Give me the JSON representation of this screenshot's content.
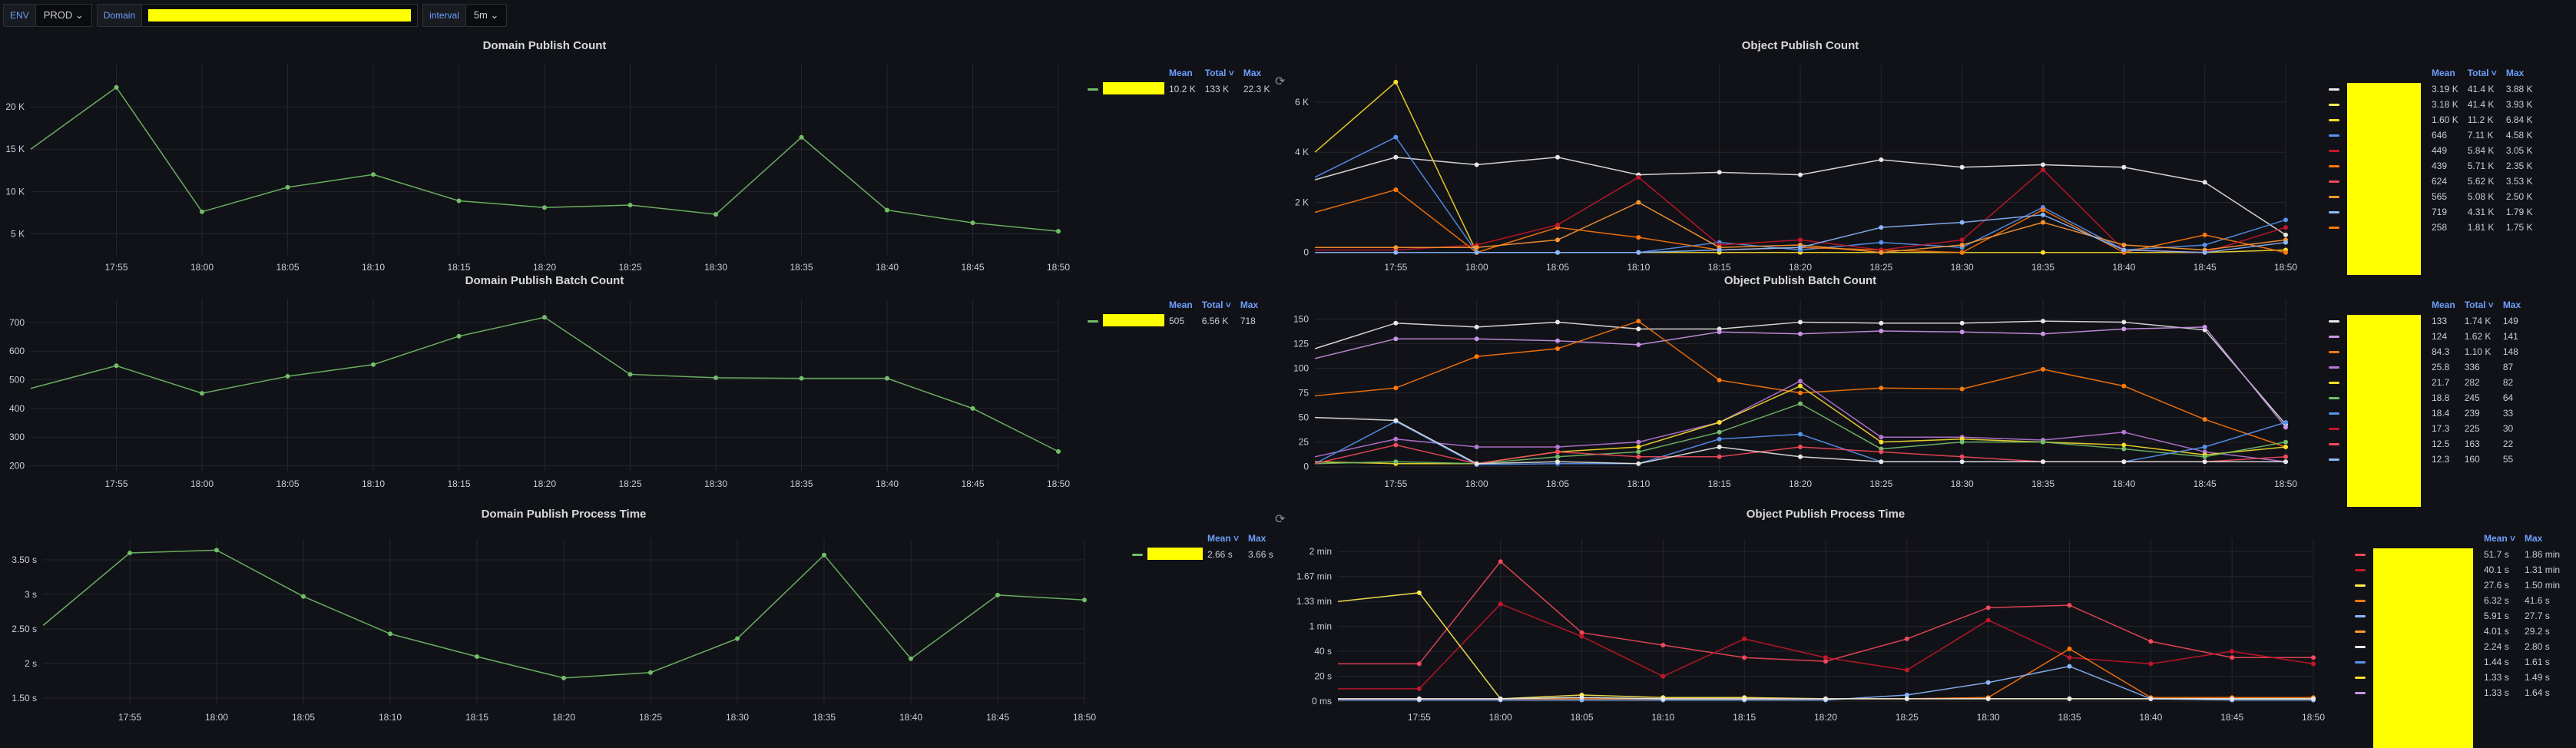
{
  "variables": {
    "env_label": "ENV",
    "env_value": "PROD",
    "domain_label": "Domain",
    "interval_label": "interval",
    "interval_value": "5m"
  },
  "colors": {
    "green": "#73bf69",
    "yellow": "#fade2a",
    "white": "#e8e8e8",
    "blue": "#5794f2",
    "orange": "#ff780a",
    "red": "#f2495c",
    "purple": "#b877d9",
    "darkred": "#c4162a",
    "paleyellow": "#ffee52",
    "lightblue": "#8ab8ff",
    "darkorange": "#ff9830",
    "lightpurple": "#ca95e5",
    "redaction": "#ffff00"
  },
  "x_labels": [
    "17:55",
    "18:00",
    "18:05",
    "18:10",
    "18:15",
    "18:20",
    "18:25",
    "18:30",
    "18:35",
    "18:40",
    "18:45",
    "18:50"
  ],
  "panels": [
    {
      "id": "domain-publish-count",
      "title": "Domain Publish Count",
      "refresh": true,
      "legend_headers": [
        "Mean",
        "Total ˅",
        "Max"
      ],
      "legend_rows": [
        {
          "color": "green",
          "values": [
            "10.2 K",
            "133 K",
            "22.3 K"
          ]
        }
      ],
      "chart_data": {
        "type": "line",
        "x": [
          "17:50",
          "17:55",
          "18:00",
          "18:05",
          "18:10",
          "18:15",
          "18:20",
          "18:25",
          "18:30",
          "18:35",
          "18:40",
          "18:45",
          "18:50"
        ],
        "ylim": [
          2500,
          25000
        ],
        "yticks": [
          {
            "v": 5000,
            "l": "5 K"
          },
          {
            "v": 10000,
            "l": "10 K"
          },
          {
            "v": 15000,
            "l": "15 K"
          },
          {
            "v": 20000,
            "l": "20 K"
          }
        ],
        "series": [
          {
            "color": "green",
            "values": [
              15000,
              22300,
              7600,
              10500,
              12000,
              8900,
              8100,
              8400,
              7300,
              16400,
              7800,
              6300,
              5300
            ]
          }
        ]
      }
    },
    {
      "id": "object-publish-count",
      "title": "Object Publish Count",
      "refresh": false,
      "legend_headers": [
        "Mean",
        "Total ˅",
        "Max"
      ],
      "legend_rows": [
        {
          "color": "white",
          "values": [
            "3.19 K",
            "41.4 K",
            "3.88 K"
          ]
        },
        {
          "color": "paleyellow",
          "values": [
            "3.18 K",
            "41.4 K",
            "3.93 K"
          ]
        },
        {
          "color": "yellow",
          "values": [
            "1.60 K",
            "11.2 K",
            "6.84 K"
          ]
        },
        {
          "color": "blue",
          "values": [
            "646",
            "7.11 K",
            "4.58 K"
          ]
        },
        {
          "color": "darkred",
          "values": [
            "449",
            "5.84 K",
            "3.05 K"
          ]
        },
        {
          "color": "orange",
          "values": [
            "439",
            "5.71 K",
            "2.35 K"
          ]
        },
        {
          "color": "red",
          "values": [
            "624",
            "5.62 K",
            "3.53 K"
          ]
        },
        {
          "color": "darkorange",
          "values": [
            "565",
            "5.08 K",
            "2.50 K"
          ]
        },
        {
          "color": "lightblue",
          "values": [
            "719",
            "4.31 K",
            "1.79 K"
          ]
        },
        {
          "color": "orange",
          "values": [
            "258",
            "1.81 K",
            "1.75 K"
          ]
        }
      ],
      "chart_data": {
        "type": "line",
        "x": [
          "17:50",
          "17:55",
          "18:00",
          "18:05",
          "18:10",
          "18:15",
          "18:20",
          "18:25",
          "18:30",
          "18:35",
          "18:40",
          "18:45",
          "18:50"
        ],
        "ylim": [
          -100,
          7500
        ],
        "yticks": [
          {
            "v": 0,
            "l": "0"
          },
          {
            "v": 2000,
            "l": "2 K"
          },
          {
            "v": 4000,
            "l": "4 K"
          },
          {
            "v": 6000,
            "l": "6 K"
          }
        ],
        "series": [
          {
            "color": "white",
            "values": [
              2900,
              3800,
              3500,
              3800,
              3100,
              3200,
              3100,
              3700,
              3400,
              3500,
              3400,
              2800,
              700
            ]
          },
          {
            "color": "yellow",
            "values": [
              4000,
              6800,
              0,
              0,
              0,
              0,
              0,
              0,
              0,
              0,
              0,
              0,
              100
            ]
          },
          {
            "color": "blue",
            "values": [
              3000,
              4600,
              0,
              0,
              0,
              400,
              100,
              400,
              200,
              1800,
              100,
              300,
              1300
            ]
          },
          {
            "color": "orange",
            "values": [
              1600,
              2500,
              0,
              1000,
              600,
              100,
              200,
              100,
              0,
              1700,
              0,
              700,
              0
            ]
          },
          {
            "color": "darkred",
            "values": [
              100,
              100,
              300,
              1100,
              3000,
              300,
              500,
              100,
              500,
              3300,
              100,
              0,
              1000
            ]
          },
          {
            "color": "darkorange",
            "values": [
              200,
              200,
              200,
              500,
              2000,
              200,
              300,
              0,
              300,
              1200,
              300,
              100,
              500
            ]
          },
          {
            "color": "lightblue",
            "values": [
              0,
              0,
              0,
              0,
              0,
              100,
              200,
              1000,
              1200,
              1500,
              100,
              0,
              400
            ]
          }
        ]
      }
    },
    {
      "id": "domain-publish-batch-count",
      "title": "Domain Publish Batch Count",
      "refresh": false,
      "legend_headers": [
        "Mean",
        "Total ˅",
        "Max"
      ],
      "legend_rows": [
        {
          "color": "green",
          "values": [
            "505",
            "6.56 K",
            "718"
          ]
        }
      ],
      "chart_data": {
        "type": "line",
        "x": [
          "17:50",
          "17:55",
          "18:00",
          "18:05",
          "18:10",
          "18:15",
          "18:20",
          "18:25",
          "18:30",
          "18:35",
          "18:40",
          "18:45",
          "18:50"
        ],
        "ylim": [
          180,
          780
        ],
        "yticks": [
          {
            "v": 200,
            "l": "200"
          },
          {
            "v": 300,
            "l": "300"
          },
          {
            "v": 400,
            "l": "400"
          },
          {
            "v": 500,
            "l": "500"
          },
          {
            "v": 600,
            "l": "600"
          },
          {
            "v": 700,
            "l": "700"
          }
        ],
        "series": [
          {
            "color": "green",
            "values": [
              470,
              549,
              453,
              512,
              553,
              652,
              718,
              519,
              507,
              505,
              505,
              400,
              250
            ]
          }
        ]
      }
    },
    {
      "id": "object-publish-batch-count",
      "title": "Object Publish Batch Count",
      "refresh": false,
      "legend_headers": [
        "Mean",
        "Total ˅",
        "Max"
      ],
      "legend_rows": [
        {
          "color": "white",
          "values": [
            "133",
            "1.74 K",
            "149"
          ]
        },
        {
          "color": "lightpurple",
          "values": [
            "124",
            "1.62 K",
            "141"
          ]
        },
        {
          "color": "orange",
          "values": [
            "84.3",
            "1.10 K",
            "148"
          ]
        },
        {
          "color": "purple",
          "values": [
            "25.8",
            "336",
            "87"
          ]
        },
        {
          "color": "yellow",
          "values": [
            "21.7",
            "282",
            "82"
          ]
        },
        {
          "color": "green",
          "values": [
            "18.8",
            "245",
            "64"
          ]
        },
        {
          "color": "blue",
          "values": [
            "18.4",
            "239",
            "33"
          ]
        },
        {
          "color": "darkred",
          "values": [
            "17.3",
            "225",
            "30"
          ]
        },
        {
          "color": "red",
          "values": [
            "12.5",
            "163",
            "22"
          ]
        },
        {
          "color": "lightblue",
          "values": [
            "12.3",
            "160",
            "55"
          ]
        }
      ],
      "chart_data": {
        "type": "line",
        "x": [
          "17:50",
          "17:55",
          "18:00",
          "18:05",
          "18:10",
          "18:15",
          "18:20",
          "18:25",
          "18:30",
          "18:35",
          "18:40",
          "18:45",
          "18:50"
        ],
        "ylim": [
          -5,
          170
        ],
        "yticks": [
          {
            "v": 0,
            "l": "0"
          },
          {
            "v": 25,
            "l": "25"
          },
          {
            "v": 50,
            "l": "50"
          },
          {
            "v": 75,
            "l": "75"
          },
          {
            "v": 100,
            "l": "100"
          },
          {
            "v": 125,
            "l": "125"
          },
          {
            "v": 150,
            "l": "150"
          }
        ],
        "series": [
          {
            "color": "white",
            "values": [
              120,
              146,
              142,
              147,
              140,
              140,
              147,
              146,
              146,
              148,
              147,
              139,
              43
            ]
          },
          {
            "color": "lightpurple",
            "values": [
              110,
              130,
              130,
              128,
              124,
              137,
              135,
              138,
              137,
              135,
              140,
              142,
              40
            ]
          },
          {
            "color": "orange",
            "values": [
              72,
              80,
              112,
              120,
              148,
              88,
              75,
              80,
              79,
              99,
              82,
              48,
              20
            ]
          },
          {
            "color": "purple",
            "values": [
              10,
              28,
              20,
              20,
              25,
              45,
              87,
              30,
              30,
              27,
              35,
              15,
              5
            ]
          },
          {
            "color": "yellow",
            "values": [
              5,
              3,
              3,
              15,
              20,
              45,
              82,
              25,
              28,
              25,
              22,
              12,
              20
            ]
          },
          {
            "color": "green",
            "values": [
              3,
              5,
              3,
              10,
              15,
              35,
              64,
              18,
              25,
              25,
              18,
              10,
              25
            ]
          },
          {
            "color": "blue",
            "values": [
              3,
              46,
              2,
              3,
              3,
              28,
              33,
              5,
              5,
              5,
              5,
              20,
              45
            ]
          },
          {
            "color": "red",
            "values": [
              3,
              22,
              3,
              15,
              10,
              10,
              20,
              15,
              10,
              5,
              5,
              5,
              10
            ]
          },
          {
            "color": "white",
            "values": [
              50,
              47,
              3,
              5,
              3,
              20,
              10,
              5,
              5,
              5,
              5,
              5,
              5
            ]
          }
        ]
      }
    },
    {
      "id": "domain-publish-process-time",
      "title": "Domain Publish Process Time",
      "refresh": true,
      "legend_headers": [
        "Mean ˅",
        "Max"
      ],
      "legend_rows": [
        {
          "color": "green",
          "values": [
            "2.66 s",
            "3.66 s"
          ]
        }
      ],
      "chart_data": {
        "type": "line",
        "x": [
          "17:50",
          "17:55",
          "18:00",
          "18:05",
          "18:10",
          "18:15",
          "18:20",
          "18:25",
          "18:30",
          "18:35",
          "18:40",
          "18:45",
          "18:50"
        ],
        "ylim": [
          1.4,
          3.8
        ],
        "yticks": [
          {
            "v": 1.5,
            "l": "1.50 s"
          },
          {
            "v": 2,
            "l": "2 s"
          },
          {
            "v": 2.5,
            "l": "2.50 s"
          },
          {
            "v": 3,
            "l": "3 s"
          },
          {
            "v": 3.5,
            "l": "3.50 s"
          }
        ],
        "series": [
          {
            "color": "green",
            "values": [
              2.55,
              3.6,
              3.64,
              2.97,
              2.43,
              2.1,
              1.79,
              1.87,
              2.36,
              3.57,
              2.07,
              2.99,
              2.92
            ]
          }
        ]
      }
    },
    {
      "id": "object-publish-process-time",
      "title": "Object Publish Process Time",
      "refresh": false,
      "legend_headers": [
        "Mean ˅",
        "Max"
      ],
      "legend_rows": [
        {
          "color": "red",
          "values": [
            "51.7 s",
            "1.86 min"
          ]
        },
        {
          "color": "darkred",
          "values": [
            "40.1 s",
            "1.31 min"
          ]
        },
        {
          "color": "paleyellow",
          "values": [
            "27.6 s",
            "1.50 min"
          ]
        },
        {
          "color": "orange",
          "values": [
            "6.32 s",
            "41.6 s"
          ]
        },
        {
          "color": "lightblue",
          "values": [
            "5.91 s",
            "27.7 s"
          ]
        },
        {
          "color": "darkorange",
          "values": [
            "4.01 s",
            "29.2 s"
          ]
        },
        {
          "color": "white",
          "values": [
            "2.24 s",
            "2.80 s"
          ]
        },
        {
          "color": "blue",
          "values": [
            "1.44 s",
            "1.61 s"
          ]
        },
        {
          "color": "yellow",
          "values": [
            "1.33 s",
            "1.49 s"
          ]
        },
        {
          "color": "lightpurple",
          "values": [
            "1.33 s",
            "1.64 s"
          ]
        }
      ],
      "chart_data": {
        "type": "line",
        "x": [
          "17:50",
          "17:55",
          "18:00",
          "18:05",
          "18:10",
          "18:15",
          "18:20",
          "18:25",
          "18:30",
          "18:35",
          "18:40",
          "18:45",
          "18:50"
        ],
        "ylim": [
          -3,
          130
        ],
        "yticks": [
          {
            "v": 0,
            "l": "0 ms"
          },
          {
            "v": 20,
            "l": "20 s"
          },
          {
            "v": 40,
            "l": "40 s"
          },
          {
            "v": 60,
            "l": "1 min"
          },
          {
            "v": 80,
            "l": "1.33 min"
          },
          {
            "v": 100,
            "l": "1.67 min"
          },
          {
            "v": 120,
            "l": "2 min"
          }
        ],
        "series": [
          {
            "color": "red",
            "values": [
              30,
              30,
              112,
              55,
              45,
              35,
              32,
              50,
              75,
              77,
              48,
              35,
              35
            ]
          },
          {
            "color": "darkred",
            "values": [
              10,
              10,
              78,
              52,
              20,
              50,
              35,
              25,
              65,
              35,
              30,
              40,
              30
            ]
          },
          {
            "color": "paleyellow",
            "values": [
              80,
              87,
              2,
              5,
              3,
              3,
              2,
              2,
              2,
              2,
              2,
              2,
              2
            ]
          },
          {
            "color": "orange",
            "values": [
              2,
              2,
              2,
              2,
              2,
              2,
              2,
              2,
              3,
              42,
              3,
              3,
              3
            ]
          },
          {
            "color": "lightblue",
            "values": [
              1,
              1,
              1,
              1,
              1,
              1,
              1,
              5,
              15,
              28,
              2,
              1,
              1
            ]
          },
          {
            "color": "white",
            "values": [
              2,
              2,
              2,
              3,
              2,
              2,
              2,
              2,
              2,
              2,
              2,
              2,
              2
            ]
          }
        ]
      }
    }
  ]
}
